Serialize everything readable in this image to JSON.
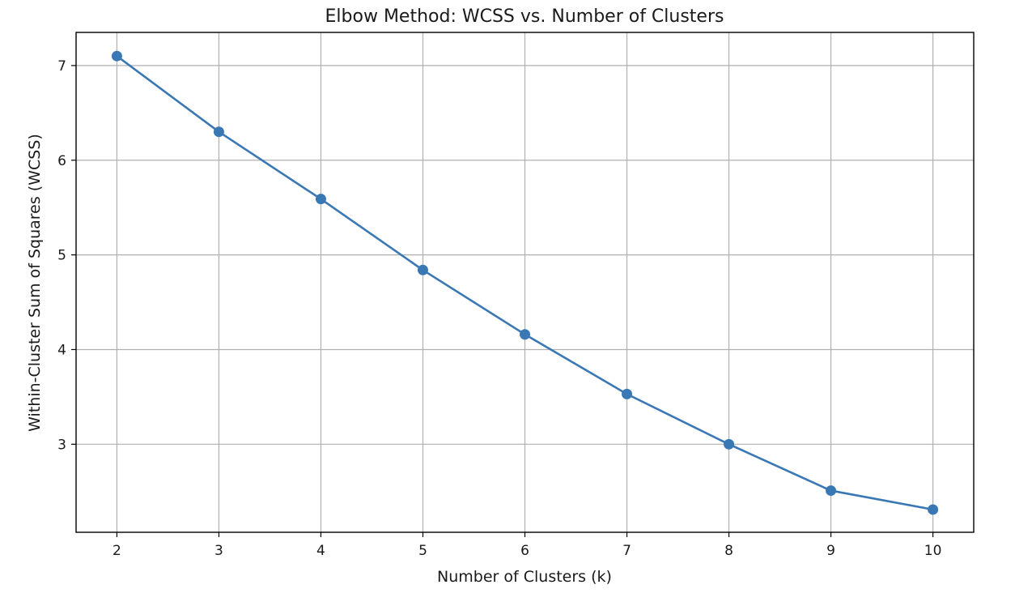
{
  "chart_data": {
    "type": "line",
    "title": "Elbow Method: WCSS vs. Number of Clusters",
    "xlabel": "Number of Clusters (k)",
    "ylabel": "Within-Cluster Sum of Squares (WCSS)",
    "x": [
      2,
      3,
      4,
      5,
      6,
      7,
      8,
      9,
      10
    ],
    "series": [
      {
        "values": [
          7.1,
          6.3,
          5.59,
          4.84,
          4.16,
          3.53,
          3.0,
          2.51,
          2.31
        ],
        "color": "#3a78b5",
        "marker": "circle"
      }
    ],
    "xlim": [
      1.6,
      10.4
    ],
    "ylim": [
      2.07,
      7.35
    ],
    "xticks": [
      "2",
      "3",
      "4",
      "5",
      "6",
      "7",
      "8",
      "9",
      "10"
    ],
    "yticks": [
      "3",
      "4",
      "5",
      "6",
      "7"
    ],
    "grid": true,
    "legend": "none"
  }
}
